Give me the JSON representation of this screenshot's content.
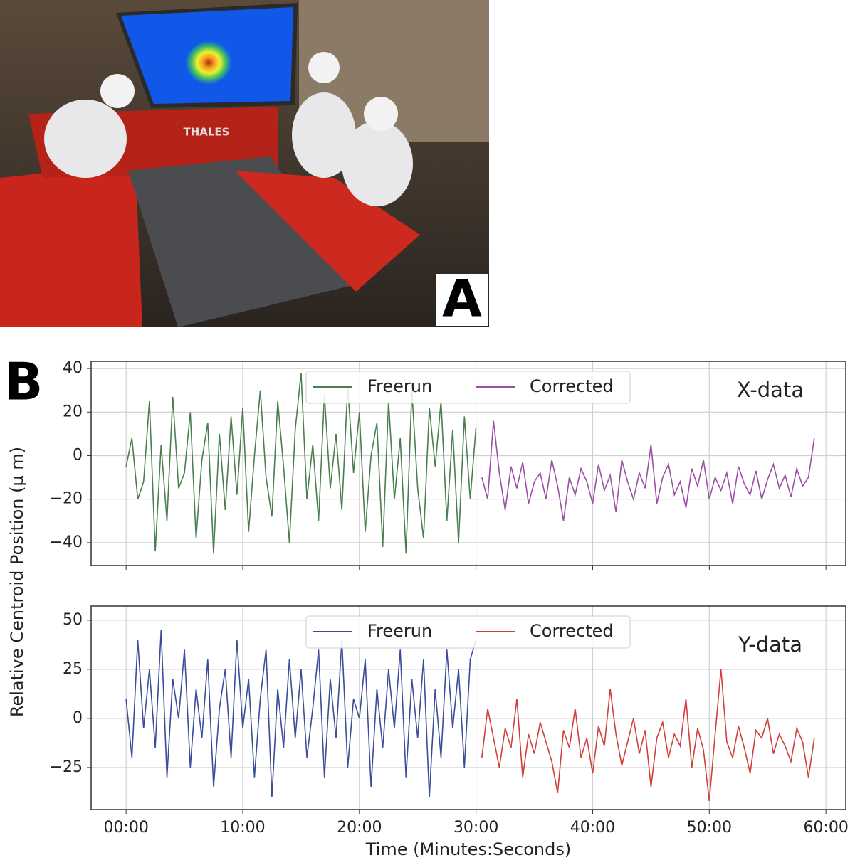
{
  "panels": {
    "a_label": "A",
    "b_label": "B"
  },
  "photo": {
    "sign": "THALES"
  },
  "shared_axes": {
    "ylabel": "Relative Centroid Position (μ m)",
    "xlabel": "Time (Minutes:Seconds)"
  },
  "chart_data": [
    {
      "type": "line",
      "annotation": "X-data",
      "grid": true,
      "legend": "top-center",
      "xtick_labels_shown": false,
      "xlim": [
        -3,
        61.7
      ],
      "ylim": [
        -50.5,
        43.3
      ],
      "xticks": [
        0,
        10,
        20,
        30,
        40,
        50,
        60
      ],
      "yticks": [
        {
          "value": -40,
          "label": "−40"
        },
        {
          "value": -20,
          "label": "−20"
        },
        0,
        20,
        40
      ],
      "series": [
        {
          "name": "Freerun",
          "color": "#4a7f4d",
          "x": [
            0,
            0.5,
            1,
            1.5,
            2,
            2.5,
            3,
            3.5,
            4,
            4.5,
            5,
            5.5,
            6,
            6.5,
            7,
            7.5,
            8,
            8.5,
            9,
            9.5,
            10,
            10.5,
            11,
            11.5,
            12,
            12.5,
            13,
            13.5,
            14,
            14.5,
            15,
            15.5,
            16,
            16.5,
            17,
            17.5,
            18,
            18.5,
            19,
            19.5,
            20,
            20.5,
            21,
            21.5,
            22,
            22.5,
            23,
            23.5,
            24,
            24.5,
            25,
            25.5,
            26,
            26.5,
            27,
            27.5,
            28,
            28.5,
            29,
            29.5,
            30
          ],
          "values": [
            -5,
            8,
            -20,
            -12,
            25,
            -44,
            5,
            -30,
            27,
            -15,
            -8,
            20,
            -38,
            -2,
            15,
            -45,
            10,
            -25,
            18,
            -18,
            22,
            -35,
            0,
            30,
            -10,
            -28,
            25,
            -5,
            -40,
            12,
            38,
            -20,
            5,
            -30,
            28,
            -15,
            10,
            -25,
            32,
            -8,
            20,
            -35,
            0,
            15,
            -42,
            25,
            -20,
            8,
            -45,
            30,
            -15,
            -38,
            22,
            -5,
            25,
            -30,
            12,
            -40,
            18,
            -20,
            13
          ]
        },
        {
          "name": "Corrected",
          "color": "#9b4fa3",
          "x": [
            30.5,
            31,
            31.5,
            32,
            32.5,
            33,
            33.5,
            34,
            34.5,
            35,
            35.5,
            36,
            36.5,
            37,
            37.5,
            38,
            38.5,
            39,
            39.5,
            40,
            40.5,
            41,
            41.5,
            42,
            42.5,
            43,
            43.5,
            44,
            44.5,
            45,
            45.5,
            46,
            46.5,
            47,
            47.5,
            48,
            48.5,
            49,
            49.5,
            50,
            50.5,
            51,
            51.5,
            52,
            52.5,
            53,
            53.5,
            54,
            54.5,
            55,
            55.5,
            56,
            56.5,
            57,
            57.5,
            58,
            58.5,
            59
          ],
          "values": [
            -10,
            -20,
            16,
            -8,
            -25,
            -5,
            -15,
            -3,
            -22,
            -12,
            -8,
            -20,
            -2,
            -14,
            -30,
            -10,
            -18,
            -6,
            -12,
            -22,
            -4,
            -16,
            -9,
            -26,
            -2,
            -12,
            -20,
            -8,
            -15,
            5,
            -22,
            -10,
            -4,
            -18,
            -12,
            -24,
            -6,
            -14,
            -2,
            -20,
            -10,
            -16,
            -8,
            -22,
            -5,
            -13,
            -18,
            -7,
            -20,
            -11,
            -4,
            -15,
            -9,
            -19,
            -6,
            -14,
            -10,
            8
          ]
        }
      ]
    },
    {
      "type": "line",
      "annotation": "Y-data",
      "grid": true,
      "legend": "top-center",
      "xtick_labels_shown": true,
      "xlim": [
        -3,
        61.7
      ],
      "ylim": [
        -46.4,
        57.2
      ],
      "xticks": [
        {
          "value": 0,
          "label": "00:00"
        },
        {
          "value": 10,
          "label": "10:00"
        },
        {
          "value": 20,
          "label": "20:00"
        },
        {
          "value": 30,
          "label": "30:00"
        },
        {
          "value": 40,
          "label": "40:00"
        },
        {
          "value": 50,
          "label": "50:00"
        },
        {
          "value": 60,
          "label": "60:00"
        }
      ],
      "yticks": [
        {
          "value": -25,
          "label": "−25"
        },
        0,
        25,
        50
      ],
      "series": [
        {
          "name": "Freerun",
          "color": "#3a4d9a",
          "x": [
            0,
            0.5,
            1,
            1.5,
            2,
            2.5,
            3,
            3.5,
            4,
            4.5,
            5,
            5.5,
            6,
            6.5,
            7,
            7.5,
            8,
            8.5,
            9,
            9.5,
            10,
            10.5,
            11,
            11.5,
            12,
            12.5,
            13,
            13.5,
            14,
            14.5,
            15,
            15.5,
            16,
            16.5,
            17,
            17.5,
            18,
            18.5,
            19,
            19.5,
            20,
            20.5,
            21,
            21.5,
            22,
            22.5,
            23,
            23.5,
            24,
            24.5,
            25,
            25.5,
            26,
            26.5,
            27,
            27.5,
            28,
            28.5,
            29,
            29.5,
            30
          ],
          "values": [
            10,
            -20,
            40,
            -5,
            25,
            -15,
            45,
            -30,
            20,
            0,
            35,
            -25,
            15,
            -10,
            30,
            -35,
            5,
            25,
            -20,
            40,
            -5,
            20,
            -30,
            10,
            35,
            -40,
            15,
            -15,
            30,
            -10,
            25,
            -20,
            5,
            35,
            -30,
            20,
            -10,
            40,
            -25,
            10,
            0,
            30,
            -35,
            15,
            -15,
            25,
            -5,
            35,
            -30,
            20,
            -10,
            30,
            -40,
            15,
            -20,
            35,
            -5,
            25,
            -25,
            30,
            40
          ]
        },
        {
          "name": "Corrected",
          "color": "#d0403a",
          "x": [
            30.5,
            31,
            31.5,
            32,
            32.5,
            33,
            33.5,
            34,
            34.5,
            35,
            35.5,
            36,
            36.5,
            37,
            37.5,
            38,
            38.5,
            39,
            39.5,
            40,
            40.5,
            41,
            41.5,
            42,
            42.5,
            43,
            43.5,
            44,
            44.5,
            45,
            45.5,
            46,
            46.5,
            47,
            47.5,
            48,
            48.5,
            49,
            49.5,
            50,
            50.5,
            51,
            51.5,
            52,
            52.5,
            53,
            53.5,
            54,
            54.5,
            55,
            55.5,
            56,
            56.5,
            57,
            57.5,
            58,
            58.5,
            59
          ],
          "values": [
            -20,
            5,
            -10,
            -25,
            -5,
            -15,
            10,
            -30,
            -8,
            -18,
            -2,
            -12,
            -22,
            -38,
            -6,
            -15,
            5,
            -20,
            -10,
            -28,
            -4,
            -14,
            15,
            -8,
            -24,
            -12,
            0,
            -18,
            -6,
            -35,
            -10,
            -2,
            -20,
            -8,
            -14,
            10,
            -25,
            -5,
            -16,
            -42,
            -8,
            25,
            -12,
            -20,
            -4,
            -15,
            -28,
            -6,
            -10,
            0,
            -18,
            -8,
            -14,
            -22,
            -5,
            -12,
            -30,
            -10
          ]
        }
      ]
    }
  ]
}
